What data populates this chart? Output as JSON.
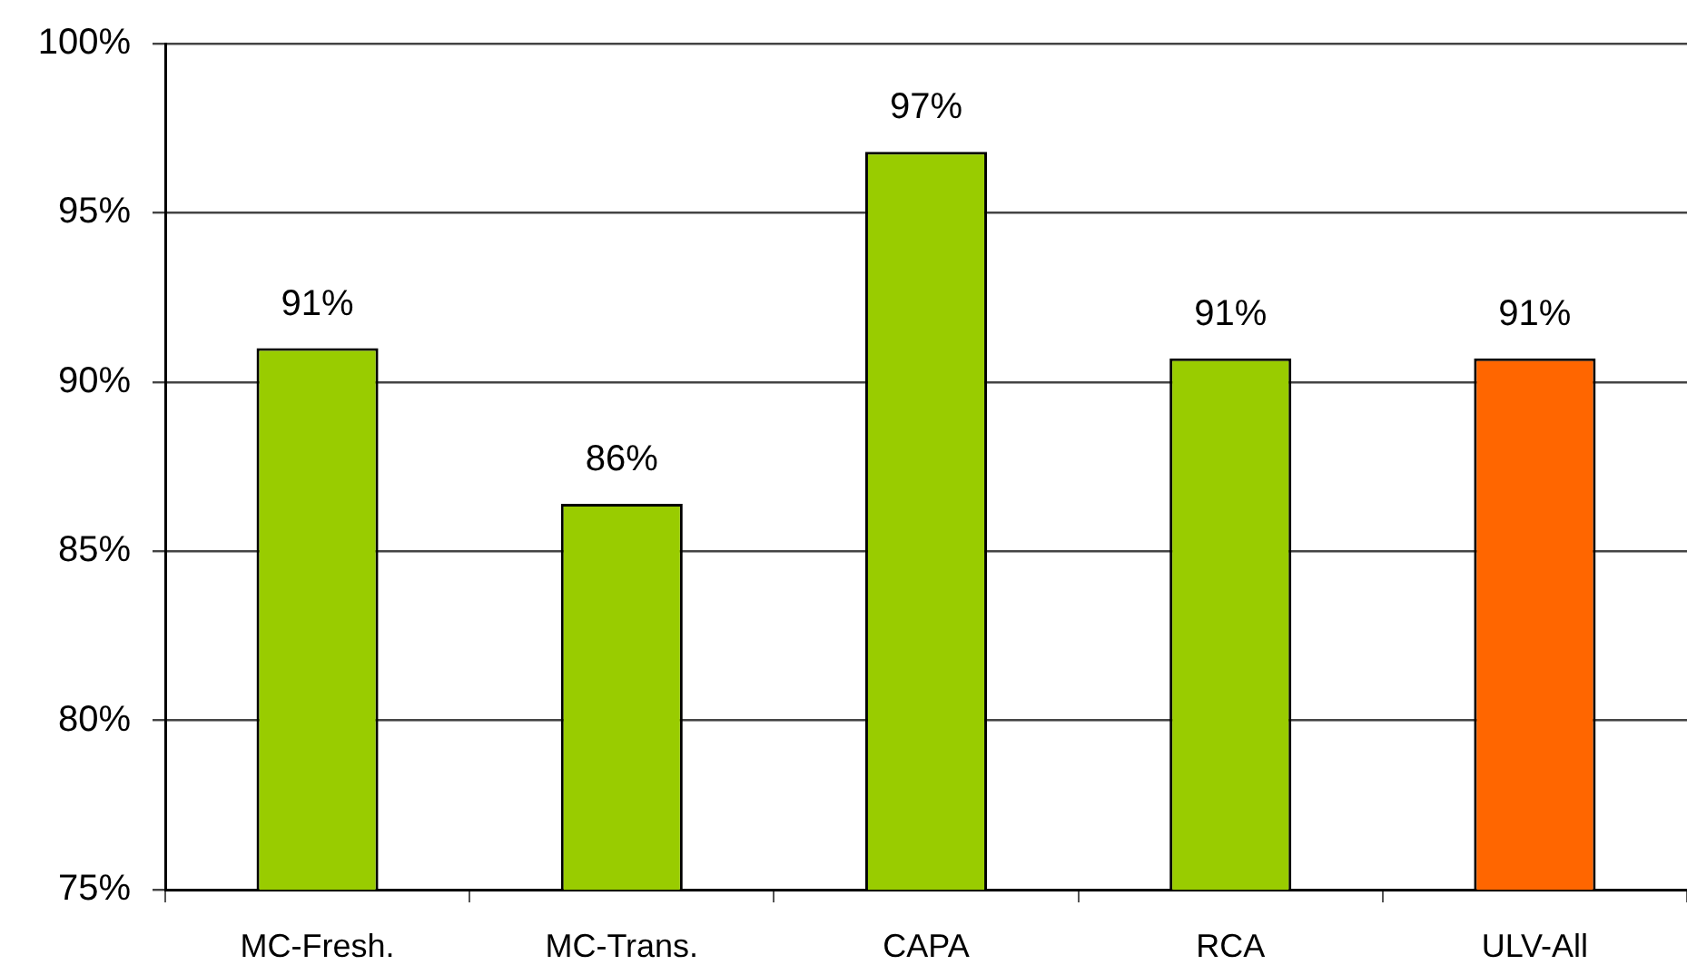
{
  "chart_data": {
    "type": "bar",
    "categories": [
      "MC-Fresh.",
      "MC-Trans.",
      "CAPA",
      "RCA",
      "ULV-All"
    ],
    "values": [
      91.0,
      86.4,
      96.8,
      90.7,
      90.7
    ],
    "colors": [
      "#99cc00",
      "#99cc00",
      "#99cc00",
      "#99cc00",
      "#ff6600"
    ],
    "value_labels": [
      "91%",
      "86%",
      "97%",
      "91%",
      "91%"
    ],
    "ylim": [
      75,
      100
    ],
    "yticks": [
      {
        "value": 75,
        "label": "75%"
      },
      {
        "value": 80,
        "label": "80%"
      },
      {
        "value": 85,
        "label": "85%"
      },
      {
        "value": 90,
        "label": "90%"
      },
      {
        "value": 95,
        "label": "95%"
      },
      {
        "value": 100,
        "label": "100%"
      }
    ],
    "grid": "y",
    "legend": false
  }
}
